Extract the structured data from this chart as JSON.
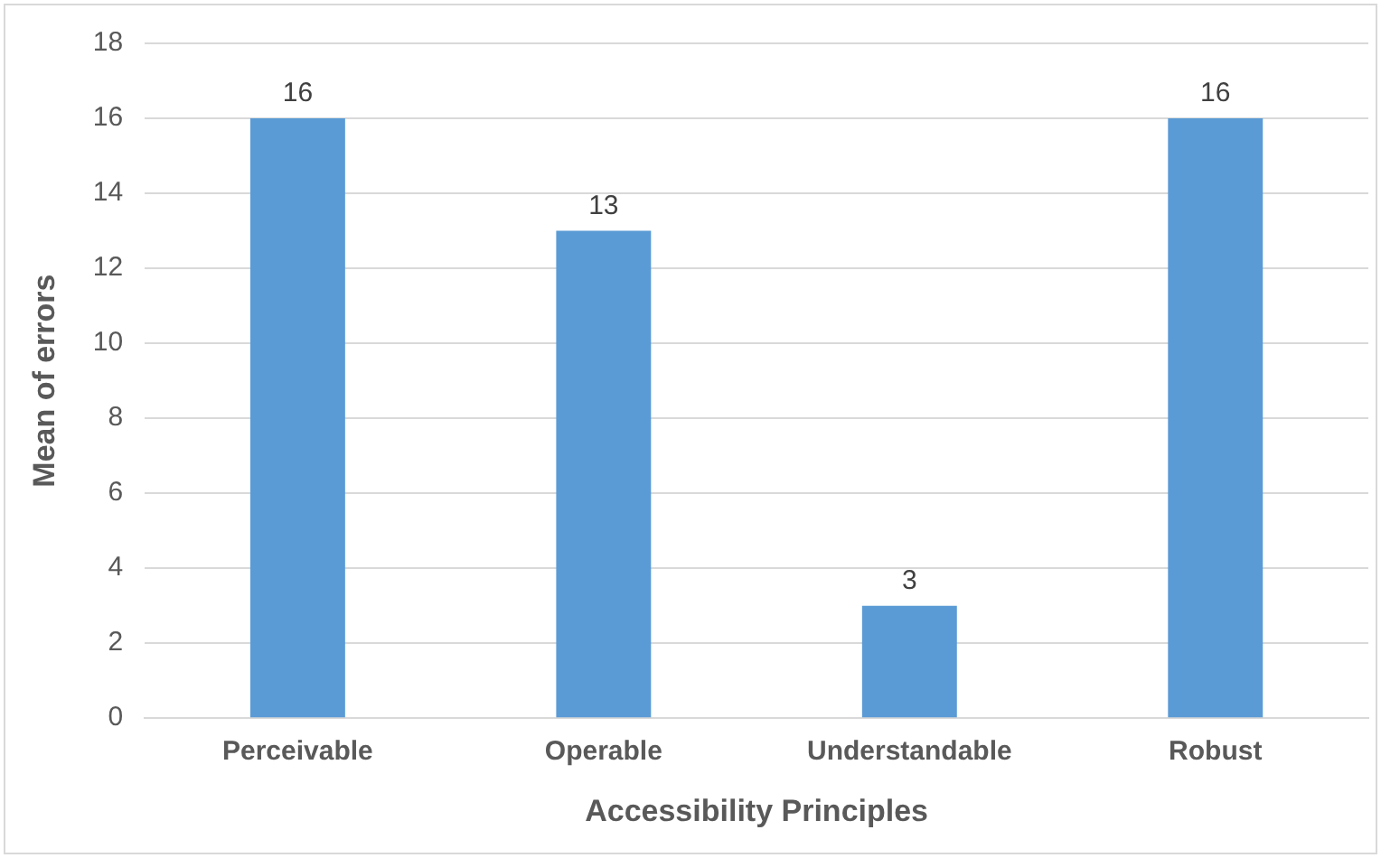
{
  "chart_data": {
    "type": "bar",
    "xlabel": "Accessibility Principles",
    "ylabel": "Mean of errors",
    "categories": [
      "Perceivable",
      "Operable",
      "Understandable",
      "Robust"
    ],
    "values": [
      16,
      13,
      3,
      16
    ],
    "color": "#5b9bd5",
    "ylim": [
      0,
      18
    ],
    "yticks": [
      0,
      2,
      4,
      6,
      8,
      10,
      12,
      14,
      16,
      18
    ],
    "grid": "y",
    "data_labels": true
  }
}
